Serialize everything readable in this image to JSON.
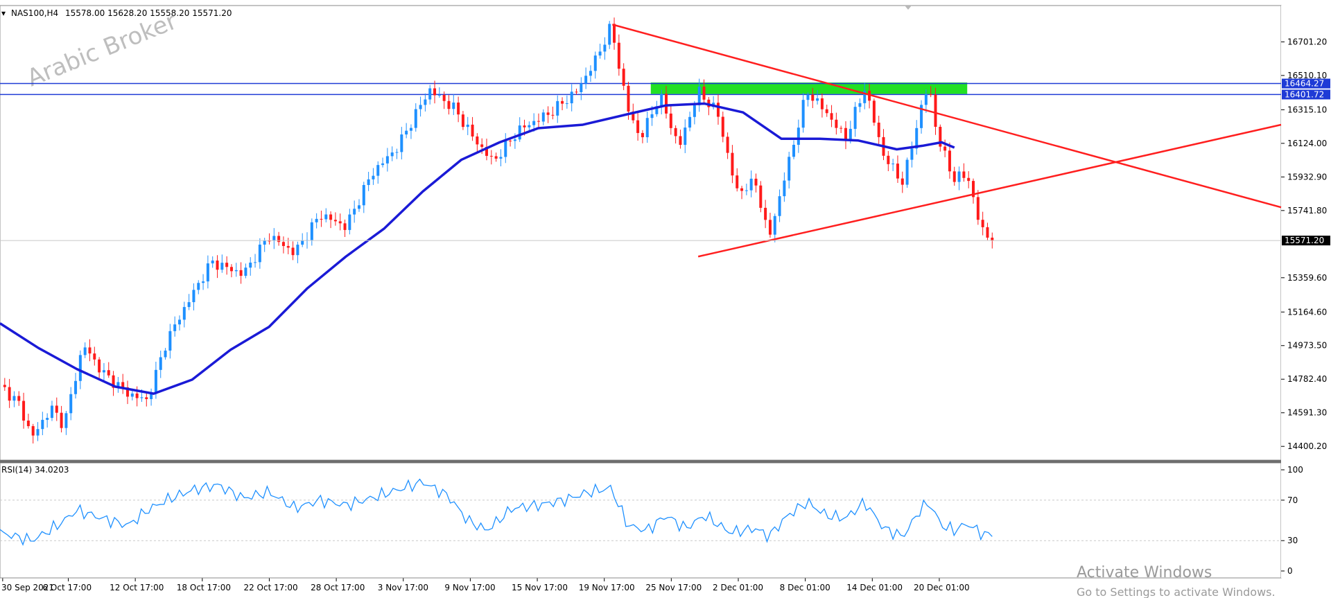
{
  "header": {
    "symbol_label": "NAS100,H4",
    "ohlc": "15578.00 15628.20 15558.20 15571.20"
  },
  "watermark": "Arabic Broker",
  "price_axis": {
    "ticks": [
      {
        "value": 16701.2,
        "label": "16701.20"
      },
      {
        "value": 16510.1,
        "label": "16510.10"
      },
      {
        "value": 16315.1,
        "label": "16315.10"
      },
      {
        "value": 16124.0,
        "label": "16124.00"
      },
      {
        "value": 15932.9,
        "label": "15932.90"
      },
      {
        "value": 15741.8,
        "label": "15741.80"
      },
      {
        "value": 15359.6,
        "label": "15359.60"
      },
      {
        "value": 15164.6,
        "label": "15164.60"
      },
      {
        "value": 14973.5,
        "label": "14973.50"
      },
      {
        "value": 14782.4,
        "label": "14782.40"
      },
      {
        "value": 14591.3,
        "label": "14591.30"
      },
      {
        "value": 14400.2,
        "label": "14400.20"
      }
    ],
    "ylim": [
      14330,
      16900
    ]
  },
  "levels": [
    {
      "label": "16464.27",
      "value": 16464.27,
      "color": "#1f3bd6"
    },
    {
      "label": "16401.72",
      "value": 16401.72,
      "color": "#1f3bd6"
    }
  ],
  "current_price": {
    "label": "15571.20",
    "value": 15571.2
  },
  "time_axis": {
    "labels": [
      "30 Sep 2021",
      "6 Oct 17:00",
      "12 Oct 17:00",
      "18 Oct 17:00",
      "22 Oct 17:00",
      "28 Oct 17:00",
      "3 Nov 17:00",
      "9 Nov 17:00",
      "15 Nov 17:00",
      "19 Nov 17:00",
      "25 Nov 17:00",
      "2 Dec 01:00",
      "8 Dec 01:00",
      "14 Dec 01:00",
      "20 Dec 01:00"
    ]
  },
  "rsi": {
    "label": "RSI(14) 34.0203",
    "ticks": [
      {
        "value": 100,
        "label": "100"
      },
      {
        "value": 70,
        "label": "70"
      },
      {
        "value": 30,
        "label": "30"
      },
      {
        "value": 0,
        "label": "0"
      }
    ]
  },
  "colors": {
    "bull": "#1e90ff",
    "bear": "#ff1a1a",
    "ma": "#1a1ad6",
    "trend": "#ff1f1f",
    "zone": "#22e022",
    "rsi_line": "#1e90ff",
    "level_box": "#1f3bd6"
  },
  "activation": {
    "title": "Activate Windows",
    "subtitle": "Go to Settings to activate Windows."
  },
  "chart_data": {
    "type": "candlestick",
    "title": "NAS100,H4",
    "ylim": [
      14330,
      16900
    ],
    "price_path": [
      {
        "t": 0,
        "p": 14750
      },
      {
        "t": 0.015,
        "p": 14640
      },
      {
        "t": 0.025,
        "p": 14450
      },
      {
        "t": 0.04,
        "p": 14620
      },
      {
        "t": 0.05,
        "p": 14520
      },
      {
        "t": 0.065,
        "p": 14980
      },
      {
        "t": 0.08,
        "p": 14820
      },
      {
        "t": 0.1,
        "p": 14700
      },
      {
        "t": 0.115,
        "p": 14660
      },
      {
        "t": 0.13,
        "p": 15000
      },
      {
        "t": 0.145,
        "p": 15200
      },
      {
        "t": 0.165,
        "p": 15450
      },
      {
        "t": 0.19,
        "p": 15380
      },
      {
        "t": 0.21,
        "p": 15600
      },
      {
        "t": 0.23,
        "p": 15500
      },
      {
        "t": 0.25,
        "p": 15720
      },
      {
        "t": 0.27,
        "p": 15650
      },
      {
        "t": 0.29,
        "p": 15950
      },
      {
        "t": 0.31,
        "p": 16100
      },
      {
        "t": 0.335,
        "p": 16430
      },
      {
        "t": 0.355,
        "p": 16320
      },
      {
        "t": 0.37,
        "p": 16150
      },
      {
        "t": 0.385,
        "p": 16020
      },
      {
        "t": 0.405,
        "p": 16200
      },
      {
        "t": 0.43,
        "p": 16300
      },
      {
        "t": 0.45,
        "p": 16420
      },
      {
        "t": 0.465,
        "p": 16600
      },
      {
        "t": 0.477,
        "p": 16790
      },
      {
        "t": 0.49,
        "p": 16320
      },
      {
        "t": 0.5,
        "p": 16150
      },
      {
        "t": 0.515,
        "p": 16400
      },
      {
        "t": 0.53,
        "p": 16100
      },
      {
        "t": 0.545,
        "p": 16420
      },
      {
        "t": 0.56,
        "p": 16300
      },
      {
        "t": 0.575,
        "p": 15850
      },
      {
        "t": 0.59,
        "p": 15900
      },
      {
        "t": 0.6,
        "p": 15580
      },
      {
        "t": 0.615,
        "p": 16000
      },
      {
        "t": 0.63,
        "p": 16420
      },
      {
        "t": 0.645,
        "p": 16300
      },
      {
        "t": 0.66,
        "p": 16150
      },
      {
        "t": 0.675,
        "p": 16440
      },
      {
        "t": 0.69,
        "p": 16050
      },
      {
        "t": 0.705,
        "p": 15900
      },
      {
        "t": 0.718,
        "p": 16300
      },
      {
        "t": 0.725,
        "p": 16460
      },
      {
        "t": 0.732,
        "p": 16150
      },
      {
        "t": 0.745,
        "p": 15920
      },
      {
        "t": 0.755,
        "p": 15950
      },
      {
        "t": 0.765,
        "p": 15650
      },
      {
        "t": 0.7745,
        "p": 15571.2
      }
    ],
    "moving_average": [
      {
        "t": 0,
        "p": 15100
      },
      {
        "t": 0.03,
        "p": 14960
      },
      {
        "t": 0.06,
        "p": 14840
      },
      {
        "t": 0.09,
        "p": 14740
      },
      {
        "t": 0.12,
        "p": 14700
      },
      {
        "t": 0.15,
        "p": 14780
      },
      {
        "t": 0.18,
        "p": 14950
      },
      {
        "t": 0.21,
        "p": 15080
      },
      {
        "t": 0.24,
        "p": 15300
      },
      {
        "t": 0.27,
        "p": 15480
      },
      {
        "t": 0.3,
        "p": 15640
      },
      {
        "t": 0.33,
        "p": 15850
      },
      {
        "t": 0.36,
        "p": 16030
      },
      {
        "t": 0.39,
        "p": 16130
      },
      {
        "t": 0.42,
        "p": 16210
      },
      {
        "t": 0.455,
        "p": 16230
      },
      {
        "t": 0.49,
        "p": 16290
      },
      {
        "t": 0.52,
        "p": 16340
      },
      {
        "t": 0.55,
        "p": 16350
      },
      {
        "t": 0.58,
        "p": 16300
      },
      {
        "t": 0.61,
        "p": 16150
      },
      {
        "t": 0.64,
        "p": 16150
      },
      {
        "t": 0.67,
        "p": 16140
      },
      {
        "t": 0.7,
        "p": 16090
      },
      {
        "t": 0.72,
        "p": 16110
      },
      {
        "t": 0.735,
        "p": 16130
      },
      {
        "t": 0.745,
        "p": 16100
      }
    ],
    "trendlines": [
      {
        "name": "descending",
        "from": {
          "t": 0.478,
          "p": 16800
        },
        "to": {
          "t": 1.0,
          "p": 15760
        }
      },
      {
        "name": "ascending",
        "from": {
          "t": 0.545,
          "p": 15480
        },
        "to": {
          "t": 1.0,
          "p": 16230
        }
      }
    ],
    "zone": {
      "t_from": 0.508,
      "t_to": 0.755,
      "p_from": 16405,
      "p_to": 16470
    },
    "rsi_series": [
      {
        "t": 0,
        "p": 38
      },
      {
        "t": 0.025,
        "p": 30
      },
      {
        "t": 0.045,
        "p": 45
      },
      {
        "t": 0.06,
        "p": 60
      },
      {
        "t": 0.08,
        "p": 52
      },
      {
        "t": 0.1,
        "p": 45
      },
      {
        "t": 0.115,
        "p": 60
      },
      {
        "t": 0.13,
        "p": 70
      },
      {
        "t": 0.15,
        "p": 80
      },
      {
        "t": 0.17,
        "p": 85
      },
      {
        "t": 0.19,
        "p": 72
      },
      {
        "t": 0.21,
        "p": 78
      },
      {
        "t": 0.23,
        "p": 62
      },
      {
        "t": 0.25,
        "p": 70
      },
      {
        "t": 0.27,
        "p": 65
      },
      {
        "t": 0.29,
        "p": 72
      },
      {
        "t": 0.31,
        "p": 80
      },
      {
        "t": 0.33,
        "p": 88
      },
      {
        "t": 0.35,
        "p": 74
      },
      {
        "t": 0.365,
        "p": 50
      },
      {
        "t": 0.38,
        "p": 40
      },
      {
        "t": 0.4,
        "p": 62
      },
      {
        "t": 0.42,
        "p": 65
      },
      {
        "t": 0.44,
        "p": 70
      },
      {
        "t": 0.46,
        "p": 78
      },
      {
        "t": 0.477,
        "p": 82
      },
      {
        "t": 0.49,
        "p": 45
      },
      {
        "t": 0.505,
        "p": 40
      },
      {
        "t": 0.52,
        "p": 55
      },
      {
        "t": 0.535,
        "p": 42
      },
      {
        "t": 0.55,
        "p": 55
      },
      {
        "t": 0.57,
        "p": 38
      },
      {
        "t": 0.59,
        "p": 42
      },
      {
        "t": 0.6,
        "p": 34
      },
      {
        "t": 0.615,
        "p": 55
      },
      {
        "t": 0.63,
        "p": 68
      },
      {
        "t": 0.645,
        "p": 55
      },
      {
        "t": 0.66,
        "p": 52
      },
      {
        "t": 0.675,
        "p": 68
      },
      {
        "t": 0.69,
        "p": 42
      },
      {
        "t": 0.705,
        "p": 34
      },
      {
        "t": 0.718,
        "p": 60
      },
      {
        "t": 0.725,
        "p": 68
      },
      {
        "t": 0.735,
        "p": 45
      },
      {
        "t": 0.745,
        "p": 40
      },
      {
        "t": 0.755,
        "p": 47
      },
      {
        "t": 0.765,
        "p": 38
      },
      {
        "t": 0.7745,
        "p": 34
      }
    ],
    "rsi_last": 34.0203
  }
}
